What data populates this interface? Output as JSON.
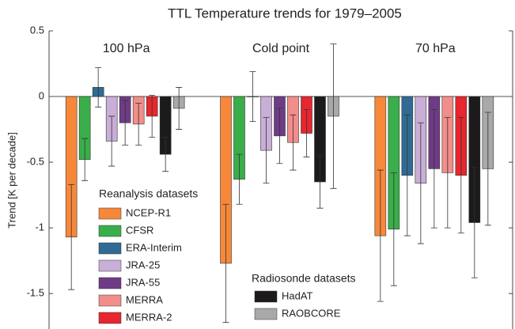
{
  "chart_data": {
    "type": "bar",
    "title": "TTL Temperature trends for 1979–2005",
    "y_label": "Trend [K per decade]",
    "categories": [
      "100 hPa",
      "Cold point",
      "70 hPa"
    ],
    "ylim": [
      -1.77,
      0.5
    ],
    "yticks": [
      0.5,
      0,
      -0.5,
      -1,
      -1.5
    ],
    "reanalysis": {
      "title": "Reanalysis datasets",
      "series": [
        {
          "name": "NCEP-R1",
          "color": "#f7883a",
          "values": [
            -1.07,
            -1.27,
            -1.06
          ],
          "errors": [
            0.4,
            0.45,
            0.5
          ]
        },
        {
          "name": "CFSR",
          "color": "#3aae4a",
          "values": [
            -0.48,
            -0.63,
            -1.01
          ],
          "errors": [
            0.16,
            0.19,
            0.43
          ]
        },
        {
          "name": "ERA-Interim",
          "color": "#2f6b93",
          "values": [
            0.07,
            0.0,
            -0.6
          ],
          "errors": [
            0.15,
            0.19,
            0.46
          ]
        },
        {
          "name": "JRA-25",
          "color": "#c9aed8",
          "values": [
            -0.34,
            -0.41,
            -0.66
          ],
          "errors": [
            0.19,
            0.25,
            0.46
          ]
        },
        {
          "name": "JRA-55",
          "color": "#6f3b86",
          "values": [
            -0.2,
            -0.3,
            -0.55
          ],
          "errors": [
            0.17,
            0.21,
            0.45
          ]
        },
        {
          "name": "MERRA",
          "color": "#f28e8a",
          "values": [
            -0.21,
            -0.35,
            -0.58
          ],
          "errors": [
            0.16,
            0.21,
            0.42
          ]
        },
        {
          "name": "MERRA-2",
          "color": "#e8262e",
          "values": [
            -0.15,
            -0.28,
            -0.6
          ],
          "errors": [
            0.16,
            0.18,
            0.44
          ]
        }
      ]
    },
    "radiosonde": {
      "title": "Radiosonde datasets",
      "series": [
        {
          "name": "HadAT",
          "color": "#1c1a1b",
          "values": [
            -0.44,
            -0.65,
            -0.96
          ],
          "errors": [
            0.13,
            0.2,
            0.42
          ]
        },
        {
          "name": "RAOBCORE",
          "color": "#a9a9a9",
          "values": [
            -0.09,
            -0.15,
            -0.55
          ],
          "errors": [
            0.16,
            0.55,
            0.43
          ]
        }
      ]
    }
  }
}
